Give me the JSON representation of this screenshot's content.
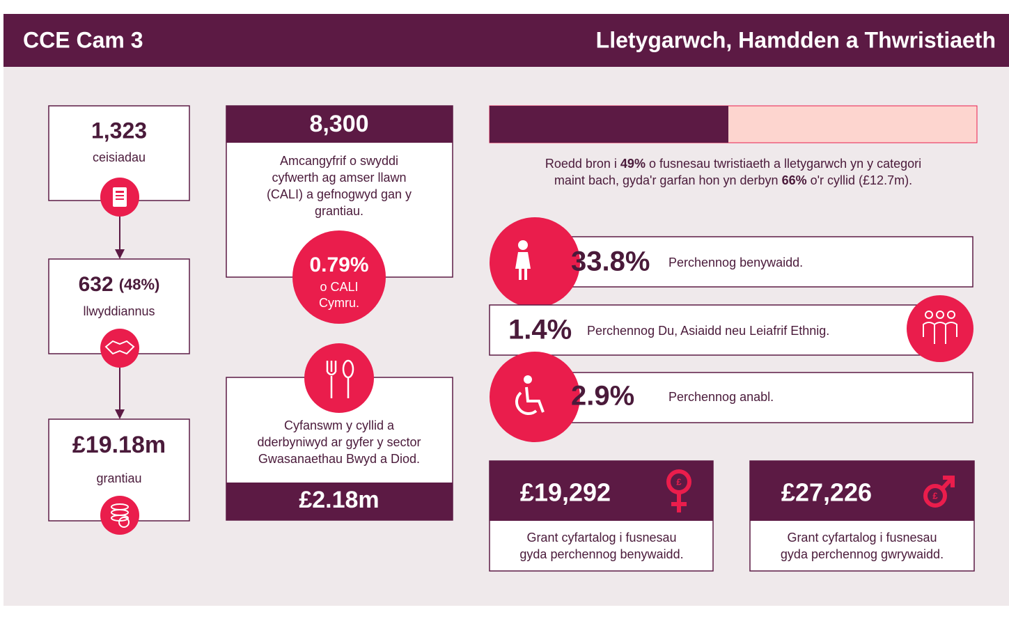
{
  "header": {
    "left": "CCE Cam 3",
    "right": "Lletygarwch, Hamdden a Thwristiaeth"
  },
  "funnel": [
    {
      "value": "1,323",
      "label": "ceisiadau"
    },
    {
      "value": "632",
      "extra": "(48%)",
      "label": "llwyddiannus"
    },
    {
      "value": "£19.18m",
      "label": "grantiau"
    }
  ],
  "jobs": {
    "value": "8,300",
    "text": [
      "Amcangyfrif o swyddi",
      "cyfwerth ag amser llawn",
      "(CALI) a gefnogwyd gan y",
      "grantiau."
    ],
    "share": "0.79%",
    "share_text": [
      "o CALI",
      "Cymru."
    ]
  },
  "food": {
    "text": [
      "Cyfanswm y cyllid a",
      "dderbyniwyd ar gyfer y sector",
      "Gwasanaethau Bwyd a Diod."
    ],
    "value": "£2.18m"
  },
  "size_bar": {
    "share": 49,
    "text": [
      [
        "Roedd bron i ",
        "49%",
        " o fusnesau twristiaeth a lletygarwch yn y categori"
      ],
      [
        "maint bach, gyda'r garfan hon yn derbyn ",
        "66%",
        " o'r cyllid (£12.7m)."
      ]
    ]
  },
  "owners": [
    {
      "value": "33.8%",
      "label": "Perchennog benywaidd."
    },
    {
      "value": "1.4%",
      "label": "Perchennog Du, Asiaidd neu Leiafrif Ethnig."
    },
    {
      "value": "2.9%",
      "label": "Perchennog anabl."
    }
  ],
  "averages": [
    {
      "value": "£19,292",
      "text": [
        "Grant cyfartalog i fusnesau",
        "gyda perchennog benywaidd."
      ]
    },
    {
      "value": "£27,226",
      "text": [
        "Grant cyfartalog i fusnesau",
        "gyda perchennog gwrywaidd."
      ]
    }
  ]
}
